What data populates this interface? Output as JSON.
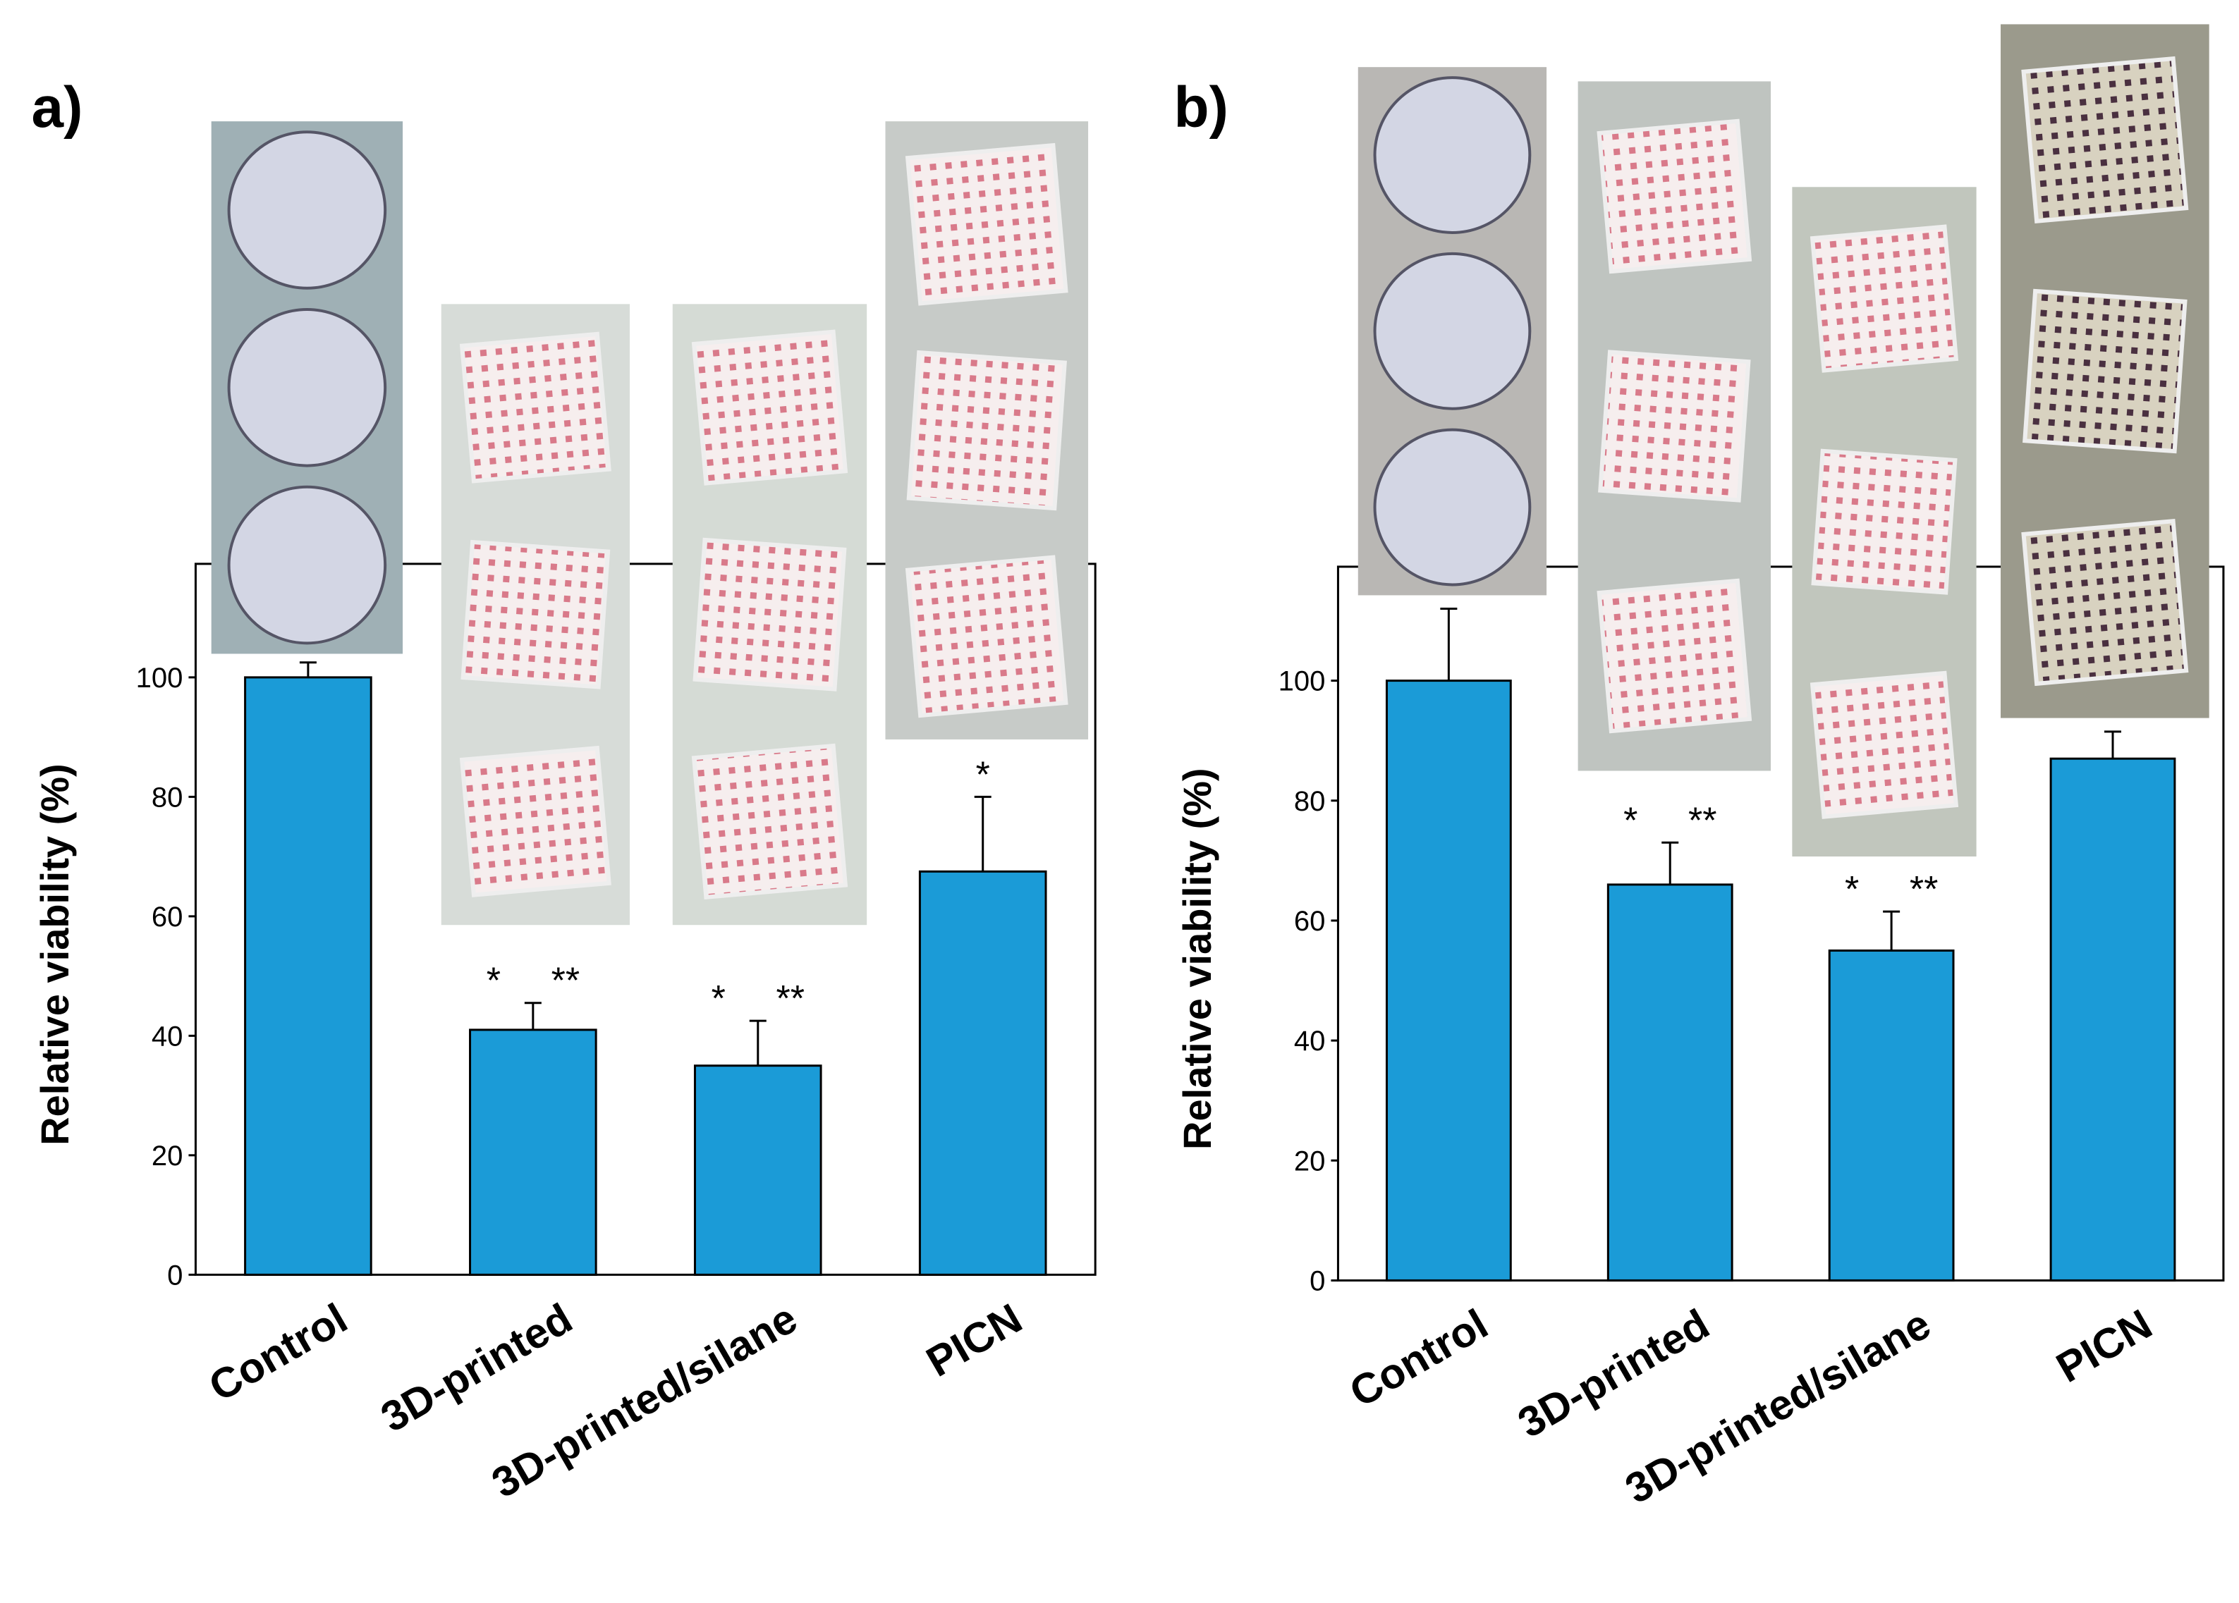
{
  "chart_data": [
    {
      "type": "bar",
      "label": "a)",
      "ylabel": "Relative viability (%)",
      "categories": [
        "Control",
        "3D-printed",
        "3D-printed/silane",
        "PICN"
      ],
      "values": [
        100,
        41,
        35,
        67.5
      ],
      "errors": [
        2.5,
        4.5,
        7.5,
        12.5
      ],
      "annotations": [
        null,
        [
          "*",
          "**"
        ],
        [
          "*",
          "**"
        ],
        [
          "*"
        ]
      ],
      "color": "#1b9bd7",
      "ylim": [
        0,
        119
      ],
      "yticks": [
        0,
        20,
        40,
        60,
        80,
        100
      ]
    },
    {
      "type": "bar",
      "label": "b)",
      "ylabel": "Relative viability (%)",
      "categories": [
        "Control",
        "3D-printed",
        "3D-printed/silane",
        "PICN"
      ],
      "values": [
        100,
        66,
        55,
        87
      ],
      "errors": [
        12,
        7,
        6.5,
        4.5
      ],
      "annotations": [
        null,
        [
          "*",
          "**"
        ],
        [
          "*",
          "**"
        ],
        null
      ],
      "color": "#1b9bd7",
      "ylim": [
        0,
        119
      ],
      "yticks": [
        0,
        20,
        40,
        60,
        80,
        100
      ]
    }
  ]
}
